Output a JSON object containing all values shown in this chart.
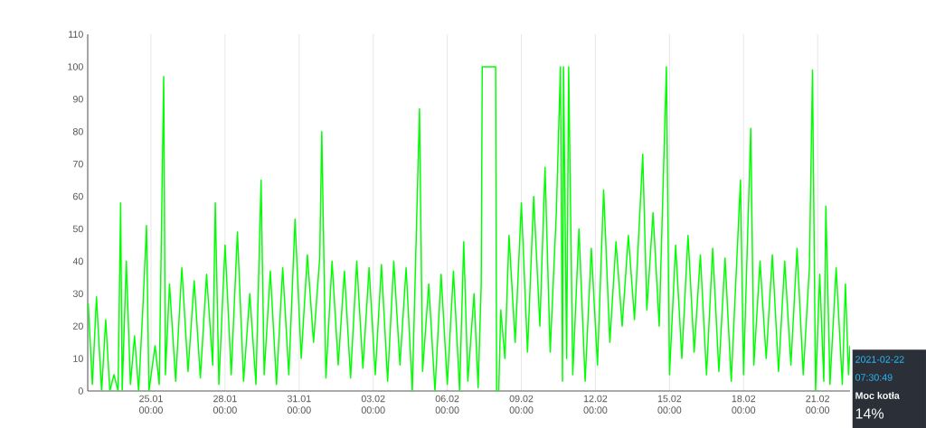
{
  "chart_data": {
    "type": "line",
    "x": [
      "2021-01-22T11:00",
      "2021-01-22T15:00",
      "2021-01-22T19:00",
      "2021-01-23T00:00",
      "2021-01-23T04:00",
      "2021-01-23T08:00",
      "2021-01-23T12:00",
      "2021-01-23T16:00",
      "2021-01-23T18:30",
      "2021-01-23T20:00",
      "2021-01-24T00:00",
      "2021-01-24T04:00",
      "2021-01-24T08:00",
      "2021-01-24T12:00",
      "2021-01-24T16:00",
      "2021-01-24T19:40",
      "2021-01-24T22:00",
      "2021-01-25T04:00",
      "2021-01-25T08:00",
      "2021-01-25T12:20",
      "2021-01-25T14:00",
      "2021-01-25T18:00",
      "2021-01-26T00:00",
      "2021-01-26T06:00",
      "2021-01-26T12:00",
      "2021-01-26T18:00",
      "2021-01-27T00:00",
      "2021-01-27T06:00",
      "2021-01-27T12:00",
      "2021-01-27T14:30",
      "2021-01-27T18:00",
      "2021-01-28T00:00",
      "2021-01-28T06:00",
      "2021-01-28T12:00",
      "2021-01-28T18:00",
      "2021-01-29T00:00",
      "2021-01-29T06:00",
      "2021-01-29T11:00",
      "2021-01-29T14:00",
      "2021-01-29T20:00",
      "2021-01-30T02:00",
      "2021-01-30T08:00",
      "2021-01-30T14:00",
      "2021-01-30T20:00",
      "2021-01-31T02:00",
      "2021-01-31T08:00",
      "2021-01-31T14:00",
      "2021-01-31T20:00",
      "2021-01-31T22:00",
      "2021-02-01T02:00",
      "2021-02-01T08:00",
      "2021-02-01T14:00",
      "2021-02-01T20:00",
      "2021-02-02T02:00",
      "2021-02-02T08:00",
      "2021-02-02T14:00",
      "2021-02-02T20:00",
      "2021-02-03T02:00",
      "2021-02-03T08:00",
      "2021-02-03T14:00",
      "2021-02-03T20:00",
      "2021-02-04T02:00",
      "2021-02-04T08:00",
      "2021-02-04T14:00",
      "2021-02-04T21:00",
      "2021-02-05T00:00",
      "2021-02-05T06:00",
      "2021-02-05T12:00",
      "2021-02-05T18:00",
      "2021-02-06T00:00",
      "2021-02-06T06:00",
      "2021-02-06T12:00",
      "2021-02-06T16:00",
      "2021-02-06T20:00",
      "2021-02-07T02:00",
      "2021-02-07T06:00",
      "2021-02-07T09:00",
      "2021-02-07T10:00",
      "2021-02-07T23:00",
      "2021-02-08T00:00",
      "2021-02-08T02:00",
      "2021-02-08T04:00",
      "2021-02-08T08:00",
      "2021-02-08T12:00",
      "2021-02-08T18:00",
      "2021-02-09T00:00",
      "2021-02-09T06:00",
      "2021-02-09T12:00",
      "2021-02-09T18:00",
      "2021-02-09T23:00",
      "2021-02-10T04:00",
      "2021-02-10T10:00",
      "2021-02-10T14:00",
      "2021-02-10T16:00",
      "2021-02-10T17:00",
      "2021-02-10T20:00",
      "2021-02-10T22:00",
      "2021-02-11T02:00",
      "2021-02-11T08:00",
      "2021-02-11T14:00",
      "2021-02-11T20:00",
      "2021-02-12T02:00",
      "2021-02-12T08:00",
      "2021-02-12T14:00",
      "2021-02-12T20:00",
      "2021-02-13T02:00",
      "2021-02-13T08:00",
      "2021-02-13T14:00",
      "2021-02-13T22:00",
      "2021-02-14T02:00",
      "2021-02-14T08:00",
      "2021-02-14T14:00",
      "2021-02-14T21:00",
      "2021-02-15T00:00",
      "2021-02-15T06:00",
      "2021-02-15T12:00",
      "2021-02-15T18:00",
      "2021-02-16T00:00",
      "2021-02-16T06:00",
      "2021-02-16T12:00",
      "2021-02-16T18:00",
      "2021-02-17T00:00",
      "2021-02-17T06:00",
      "2021-02-17T12:00",
      "2021-02-17T21:00",
      "2021-02-18T00:00",
      "2021-02-18T07:00",
      "2021-02-18T10:00",
      "2021-02-18T16:00",
      "2021-02-18T22:00",
      "2021-02-19T04:00",
      "2021-02-19T10:00",
      "2021-02-19T16:00",
      "2021-02-19T22:00",
      "2021-02-20T04:00",
      "2021-02-20T10:00",
      "2021-02-20T16:00",
      "2021-02-20T19:00",
      "2021-02-20T22:00",
      "2021-02-21T02:00",
      "2021-02-21T06:00",
      "2021-02-21T08:00",
      "2021-02-21T12:00",
      "2021-02-21T18:00",
      "2021-02-22T00:00",
      "2021-02-22T03:00",
      "2021-02-22T06:00",
      "2021-02-22T07:30"
    ],
    "series": [
      {
        "color": "#00ff00",
        "values": [
          27,
          2,
          29,
          0,
          22,
          0,
          5,
          0,
          58,
          0,
          40,
          2,
          17,
          0,
          25,
          51,
          0,
          14,
          2,
          97,
          5,
          33,
          3,
          38,
          6,
          34,
          4,
          36,
          8,
          58,
          2,
          45,
          5,
          49,
          3,
          30,
          2,
          65,
          5,
          37,
          2,
          38,
          5,
          53,
          10,
          42,
          15,
          41,
          80,
          4,
          40,
          8,
          37,
          4,
          40,
          7,
          38,
          5,
          39,
          3,
          40,
          8,
          38,
          0,
          87,
          6,
          33,
          0,
          36,
          2,
          37,
          0,
          46,
          3,
          30,
          1,
          33,
          100,
          100,
          0,
          0,
          25,
          10,
          48,
          15,
          58,
          12,
          60,
          20,
          69,
          12,
          55,
          100,
          3,
          100,
          10,
          100,
          5,
          50,
          3,
          44,
          8,
          62,
          15,
          46,
          20,
          48,
          22,
          73,
          25,
          55,
          20,
          100,
          5,
          45,
          10,
          48,
          12,
          42,
          5,
          44,
          6,
          41,
          3,
          65,
          5,
          81,
          8,
          40,
          10,
          42,
          6,
          40,
          8,
          44,
          5,
          38,
          99,
          0,
          36,
          3,
          57,
          2,
          38,
          2,
          33,
          5,
          14
        ]
      }
    ],
    "xlim": [
      "2021-01-22T10:30",
      "2021-02-22T07:30"
    ],
    "xticks": [
      {
        "value": "2021-01-25T00:00",
        "label": "25.01 00:00"
      },
      {
        "value": "2021-01-28T00:00",
        "label": "28.01 00:00"
      },
      {
        "value": "2021-01-31T00:00",
        "label": "31.01 00:00"
      },
      {
        "value": "2021-02-03T00:00",
        "label": "03.02 00:00"
      },
      {
        "value": "2021-02-06T00:00",
        "label": "06.02 00:00"
      },
      {
        "value": "2021-02-09T00:00",
        "label": "09.02 00:00"
      },
      {
        "value": "2021-02-12T00:00",
        "label": "12.02 00:00"
      },
      {
        "value": "2021-02-15T00:00",
        "label": "15.02 00:00"
      },
      {
        "value": "2021-02-18T00:00",
        "label": "18.02 00:00"
      },
      {
        "value": "2021-02-21T00:00",
        "label": "21.02 00:00"
      }
    ],
    "ylim": [
      0,
      110
    ],
    "yticks": [
      0,
      10,
      20,
      30,
      40,
      50,
      60,
      70,
      80,
      90,
      100,
      110
    ],
    "grid": "x",
    "line_style": "solid",
    "annotations": [
      "2021-02-22",
      "07:30:49",
      "Moc kotła",
      "14%"
    ]
  }
}
